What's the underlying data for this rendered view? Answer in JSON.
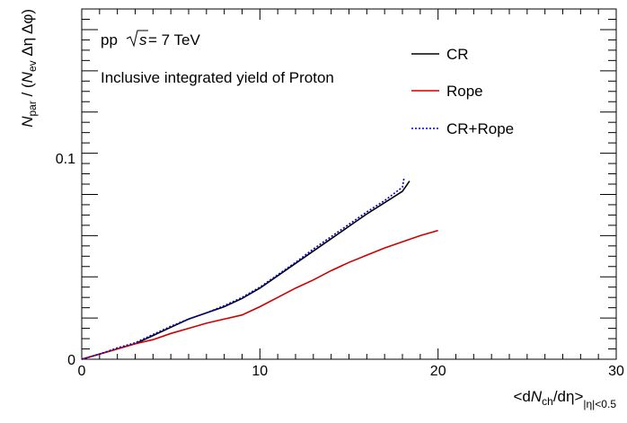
{
  "chart_data": {
    "type": "line",
    "xlim": [
      0,
      30
    ],
    "ylim": [
      0,
      0.17
    ],
    "x_ticks": [
      "0",
      "10",
      "20",
      "30"
    ],
    "y_ticks": [
      "0",
      "0.1"
    ],
    "xlabel": {
      "lt": "<d",
      "N": "N",
      "ch": "ch",
      "rest": "/dη>",
      "sub": "|η|<0.5"
    },
    "ylabel": {
      "N": "N",
      "par": "par",
      "mid": " / (",
      "N2": "N",
      "ev": "ev",
      "tail": " Δη Δφ)"
    },
    "annotations": {
      "energy_pp": "pp",
      "energy_s": "s",
      "energy_val": " = 7 TeV",
      "subtitle": "Inclusive integrated yield of Proton"
    },
    "legend_position": "top-right",
    "series": [
      {
        "name": "CR",
        "color": "#000000",
        "style": "solid",
        "points": [
          [
            0,
            0
          ],
          [
            1,
            0.0025
          ],
          [
            2,
            0.005
          ],
          [
            3,
            0.0075
          ],
          [
            4,
            0.0115
          ],
          [
            5,
            0.0155
          ],
          [
            6,
            0.0195
          ],
          [
            7,
            0.0225
          ],
          [
            8,
            0.0255
          ],
          [
            9,
            0.0295
          ],
          [
            10,
            0.0345
          ],
          [
            11,
            0.0405
          ],
          [
            12,
            0.0465
          ],
          [
            13,
            0.0525
          ],
          [
            14,
            0.0585
          ],
          [
            15,
            0.0645
          ],
          [
            16,
            0.0705
          ],
          [
            17,
            0.076
          ],
          [
            18,
            0.0815
          ],
          [
            18.4,
            0.0865
          ]
        ]
      },
      {
        "name": "Rope",
        "color": "#cc0000",
        "style": "solid",
        "points": [
          [
            0,
            0
          ],
          [
            1,
            0.0025
          ],
          [
            2,
            0.005
          ],
          [
            3,
            0.0075
          ],
          [
            4,
            0.0095
          ],
          [
            5,
            0.0125
          ],
          [
            6,
            0.015
          ],
          [
            7,
            0.0175
          ],
          [
            8,
            0.0195
          ],
          [
            9,
            0.0215
          ],
          [
            10,
            0.0255
          ],
          [
            11,
            0.03
          ],
          [
            12,
            0.0345
          ],
          [
            13,
            0.0385
          ],
          [
            14,
            0.043
          ],
          [
            15,
            0.047
          ],
          [
            16,
            0.0505
          ],
          [
            17,
            0.054
          ],
          [
            18,
            0.057
          ],
          [
            19,
            0.06
          ],
          [
            20,
            0.0625
          ]
        ]
      },
      {
        "name": "CR+Rope",
        "color": "#0000cc",
        "style": "dotted",
        "points": [
          [
            0,
            0
          ],
          [
            1,
            0.0025
          ],
          [
            2,
            0.0055
          ],
          [
            3,
            0.008
          ],
          [
            4,
            0.012
          ],
          [
            5,
            0.016
          ],
          [
            6,
            0.0195
          ],
          [
            7,
            0.0225
          ],
          [
            8,
            0.026
          ],
          [
            9,
            0.03
          ],
          [
            10,
            0.035
          ],
          [
            11,
            0.041
          ],
          [
            12,
            0.047
          ],
          [
            13,
            0.0535
          ],
          [
            14,
            0.0595
          ],
          [
            15,
            0.0655
          ],
          [
            16,
            0.0715
          ],
          [
            17,
            0.077
          ],
          [
            18,
            0.0835
          ],
          [
            18.1,
            0.0885
          ]
        ]
      }
    ]
  }
}
